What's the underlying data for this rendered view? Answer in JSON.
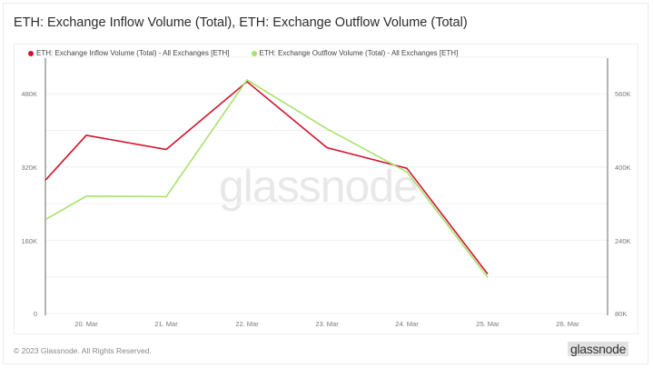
{
  "header": {
    "title": "ETH: Exchange Inflow Volume (Total), ETH: Exchange Outflow Volume (Total)"
  },
  "legend": [
    {
      "label": "ETH: Exchange Inflow Volume (Total) - All Exchanges [ETH]",
      "color": "#d0142c"
    },
    {
      "label": "ETH: Exchange Outflow Volume (Total) - All Exchanges [ETH]",
      "color": "#a6e26b"
    }
  ],
  "axes": {
    "left_ticks": [
      "480K",
      "320K",
      "160K",
      "0"
    ],
    "right_ticks": [
      "560K",
      "400K",
      "240K",
      "80K"
    ],
    "x_ticks": [
      "20. Mar",
      "21. Mar",
      "22. Mar",
      "23. Mar",
      "24. Mar",
      "25. Mar",
      "26. Mar"
    ]
  },
  "watermark": "glassnode",
  "footer": {
    "copyright": "© 2023 Glassnode. All Rights Reserved.",
    "logo": "glassnode"
  },
  "chart_data": {
    "type": "line",
    "title": "ETH: Exchange Inflow Volume (Total), ETH: Exchange Outflow Volume (Total)",
    "xlabel": "",
    "ylabel": "",
    "x": [
      "19. Mar (edge)",
      "20. Mar",
      "21. Mar",
      "22. Mar",
      "23. Mar",
      "24. Mar",
      "25. Mar"
    ],
    "series": [
      {
        "name": "ETH: Exchange Inflow Volume (Total) - All Exchanges [ETH]",
        "axis": "left",
        "color": "#d0142c",
        "values": [
          291000,
          389000,
          358000,
          506000,
          362000,
          317000,
          86000
        ]
      },
      {
        "name": "ETH: Exchange Outflow Volume (Total) - All Exchanges [ETH]",
        "axis": "right",
        "color": "#a6e26b",
        "values": [
          285000,
          336000,
          335000,
          590000,
          483000,
          389000,
          159000
        ]
      }
    ],
    "ylim_left": [
      0,
      560000
    ],
    "ylim_right": [
      80000,
      640000
    ],
    "left_ticks": [
      0,
      160000,
      320000,
      480000
    ],
    "right_ticks": [
      80000,
      240000,
      400000,
      560000
    ],
    "x_tick_labels": [
      "20. Mar",
      "21. Mar",
      "22. Mar",
      "23. Mar",
      "24. Mar",
      "25. Mar",
      "26. Mar"
    ],
    "grid": true,
    "legend_position": "top-left"
  }
}
